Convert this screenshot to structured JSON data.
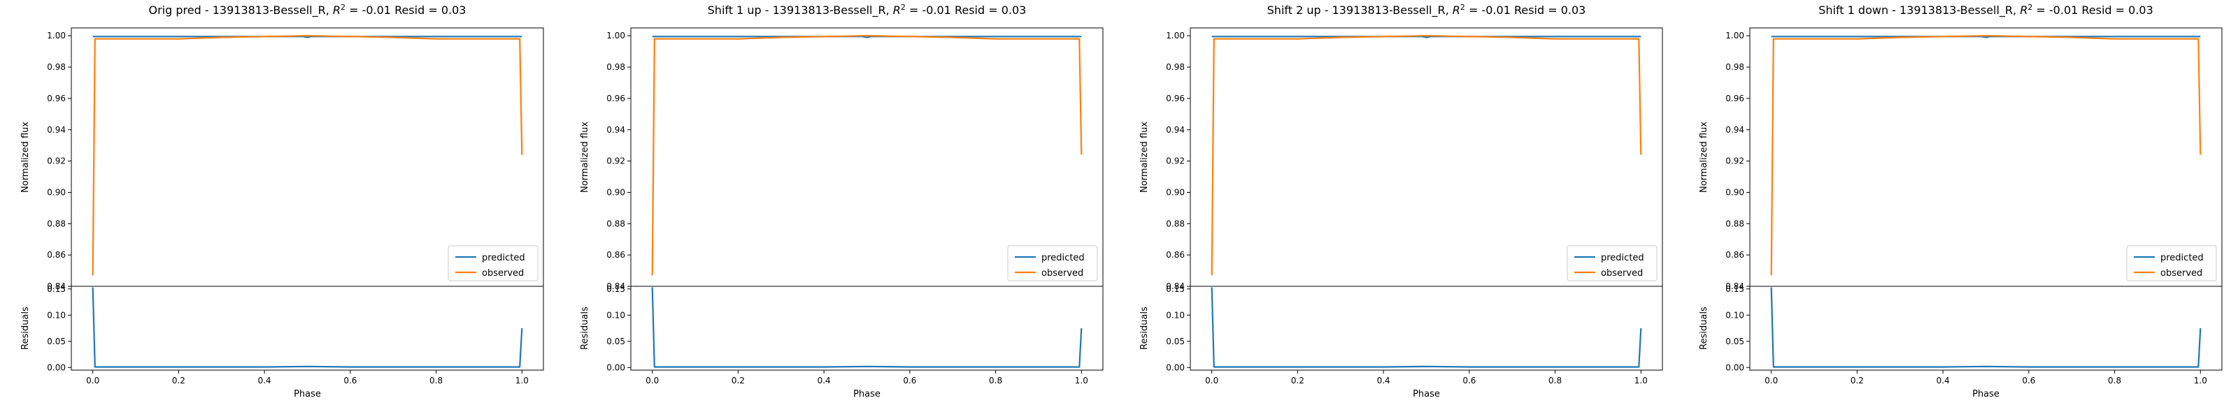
{
  "colors": {
    "predicted": "#1f77b4",
    "observed": "#ff7f0e",
    "axis": "#000000",
    "background": "#ffffff"
  },
  "chart_data": [
    {
      "type": "line",
      "title": "Orig pred - 13913813-Bessell_R, R² = -0.01 Resid = 0.03",
      "title_parts": {
        "prefix": "Orig pred - 13913813-Bessell_R, ",
        "r": "R",
        "sup": "2",
        "suffix": " = -0.01 Resid = 0.03"
      },
      "ylabel": "Normalized flux",
      "ylim": [
        0.84,
        1.005
      ],
      "yticks": [
        "0.84",
        "0.86",
        "0.88",
        "0.90",
        "0.92",
        "0.94",
        "0.96",
        "0.98",
        "1.00"
      ],
      "legend": {
        "position": "lower-right",
        "entries": [
          "predicted",
          "observed"
        ]
      },
      "series": [
        {
          "name": "predicted",
          "x": [
            0.0,
            0.005,
            0.1,
            0.2,
            0.3,
            0.4,
            0.49,
            0.5,
            0.51,
            0.6,
            0.7,
            0.8,
            0.9,
            0.995,
            1.0
          ],
          "values": [
            0.9995,
            0.9995,
            0.9995,
            0.9995,
            0.9995,
            0.9995,
            0.9995,
            0.999,
            0.9995,
            0.9995,
            0.9995,
            0.9995,
            0.9995,
            0.9995,
            0.9995
          ]
        },
        {
          "name": "observed",
          "x": [
            0.0,
            0.005,
            0.1,
            0.2,
            0.3,
            0.4,
            0.5,
            0.6,
            0.7,
            0.8,
            0.9,
            0.995,
            1.0
          ],
          "values": [
            0.847,
            0.998,
            0.998,
            0.998,
            0.999,
            0.9995,
            1.0,
            0.9995,
            0.999,
            0.998,
            0.998,
            0.998,
            0.924
          ]
        }
      ],
      "residuals": {
        "ylabel": "Residuals",
        "xlabel": "Phase",
        "ylim": [
          -0.005,
          0.155
        ],
        "yticks": [
          "0.00",
          "0.05",
          "0.10",
          "0.15"
        ],
        "xlim": [
          -0.05,
          1.05
        ],
        "xticks": [
          "0.0",
          "0.2",
          "0.4",
          "0.6",
          "0.8",
          "1.0"
        ],
        "x": [
          0.0,
          0.005,
          0.1,
          0.2,
          0.3,
          0.4,
          0.5,
          0.6,
          0.7,
          0.8,
          0.9,
          0.995,
          1.0
        ],
        "values": [
          0.153,
          0.001,
          0.001,
          0.001,
          0.001,
          0.001,
          0.002,
          0.001,
          0.001,
          0.001,
          0.001,
          0.001,
          0.075
        ]
      }
    },
    {
      "type": "line",
      "title": "Shift 1 up - 13913813-Bessell_R, R² = -0.01 Resid = 0.03",
      "title_parts": {
        "prefix": "Shift 1 up - 13913813-Bessell_R, ",
        "r": "R",
        "sup": "2",
        "suffix": " = -0.01 Resid = 0.03"
      },
      "ylabel": "Normalized flux",
      "ylim": [
        0.84,
        1.005
      ],
      "yticks": [
        "0.84",
        "0.86",
        "0.88",
        "0.90",
        "0.92",
        "0.94",
        "0.96",
        "0.98",
        "1.00"
      ],
      "legend": {
        "position": "lower-right",
        "entries": [
          "predicted",
          "observed"
        ]
      },
      "series": [
        {
          "name": "predicted",
          "x": [
            0.0,
            0.005,
            0.1,
            0.2,
            0.3,
            0.4,
            0.49,
            0.5,
            0.51,
            0.6,
            0.7,
            0.8,
            0.9,
            0.995,
            1.0
          ],
          "values": [
            0.9995,
            0.9995,
            0.9995,
            0.9995,
            0.9995,
            0.9995,
            0.9995,
            0.999,
            0.9995,
            0.9995,
            0.9995,
            0.9995,
            0.9995,
            0.9995,
            0.9995
          ]
        },
        {
          "name": "observed",
          "x": [
            0.0,
            0.005,
            0.1,
            0.2,
            0.3,
            0.4,
            0.5,
            0.6,
            0.7,
            0.8,
            0.9,
            0.995,
            1.0
          ],
          "values": [
            0.847,
            0.998,
            0.998,
            0.998,
            0.999,
            0.9995,
            1.0,
            0.9995,
            0.999,
            0.998,
            0.998,
            0.998,
            0.924
          ]
        }
      ],
      "residuals": {
        "ylabel": "Residuals",
        "xlabel": "Phase",
        "ylim": [
          -0.005,
          0.155
        ],
        "yticks": [
          "0.00",
          "0.05",
          "0.10",
          "0.15"
        ],
        "xlim": [
          -0.05,
          1.05
        ],
        "xticks": [
          "0.0",
          "0.2",
          "0.4",
          "0.6",
          "0.8",
          "1.0"
        ],
        "x": [
          0.0,
          0.005,
          0.1,
          0.2,
          0.3,
          0.4,
          0.5,
          0.6,
          0.7,
          0.8,
          0.9,
          0.995,
          1.0
        ],
        "values": [
          0.153,
          0.001,
          0.001,
          0.001,
          0.001,
          0.001,
          0.002,
          0.001,
          0.001,
          0.001,
          0.001,
          0.001,
          0.075
        ]
      }
    },
    {
      "type": "line",
      "title": "Shift 2 up - 13913813-Bessell_R, R² = -0.01 Resid = 0.03",
      "title_parts": {
        "prefix": "Shift 2 up - 13913813-Bessell_R, ",
        "r": "R",
        "sup": "2",
        "suffix": " = -0.01 Resid = 0.03"
      },
      "ylabel": "Normalized flux",
      "ylim": [
        0.84,
        1.005
      ],
      "yticks": [
        "0.84",
        "0.86",
        "0.88",
        "0.90",
        "0.92",
        "0.94",
        "0.96",
        "0.98",
        "1.00"
      ],
      "legend": {
        "position": "lower-right",
        "entries": [
          "predicted",
          "observed"
        ]
      },
      "series": [
        {
          "name": "predicted",
          "x": [
            0.0,
            0.005,
            0.1,
            0.2,
            0.3,
            0.4,
            0.49,
            0.5,
            0.51,
            0.6,
            0.7,
            0.8,
            0.9,
            0.995,
            1.0
          ],
          "values": [
            0.9995,
            0.9995,
            0.9995,
            0.9995,
            0.9995,
            0.9995,
            0.9995,
            0.999,
            0.9995,
            0.9995,
            0.9995,
            0.9995,
            0.9995,
            0.9995,
            0.9995
          ]
        },
        {
          "name": "observed",
          "x": [
            0.0,
            0.005,
            0.1,
            0.2,
            0.3,
            0.4,
            0.5,
            0.6,
            0.7,
            0.8,
            0.9,
            0.995,
            1.0
          ],
          "values": [
            0.847,
            0.998,
            0.998,
            0.998,
            0.999,
            0.9995,
            1.0,
            0.9995,
            0.999,
            0.998,
            0.998,
            0.998,
            0.924
          ]
        }
      ],
      "residuals": {
        "ylabel": "Residuals",
        "xlabel": "Phase",
        "ylim": [
          -0.005,
          0.155
        ],
        "yticks": [
          "0.00",
          "0.05",
          "0.10",
          "0.15"
        ],
        "xlim": [
          -0.05,
          1.05
        ],
        "xticks": [
          "0.0",
          "0.2",
          "0.4",
          "0.6",
          "0.8",
          "1.0"
        ],
        "x": [
          0.0,
          0.005,
          0.1,
          0.2,
          0.3,
          0.4,
          0.5,
          0.6,
          0.7,
          0.8,
          0.9,
          0.995,
          1.0
        ],
        "values": [
          0.153,
          0.001,
          0.001,
          0.001,
          0.001,
          0.001,
          0.002,
          0.001,
          0.001,
          0.001,
          0.001,
          0.001,
          0.075
        ]
      }
    },
    {
      "type": "line",
      "title": "Shift 1 down - 13913813-Bessell_R, R² = -0.01 Resid = 0.03",
      "title_parts": {
        "prefix": "Shift 1 down - 13913813-Bessell_R, ",
        "r": "R",
        "sup": "2",
        "suffix": " = -0.01 Resid = 0.03"
      },
      "ylabel": "Normalized flux",
      "ylim": [
        0.84,
        1.005
      ],
      "yticks": [
        "0.84",
        "0.86",
        "0.88",
        "0.90",
        "0.92",
        "0.94",
        "0.96",
        "0.98",
        "1.00"
      ],
      "legend": {
        "position": "lower-right",
        "entries": [
          "predicted",
          "observed"
        ]
      },
      "series": [
        {
          "name": "predicted",
          "x": [
            0.0,
            0.005,
            0.1,
            0.2,
            0.3,
            0.4,
            0.49,
            0.5,
            0.51,
            0.6,
            0.7,
            0.8,
            0.9,
            0.995,
            1.0
          ],
          "values": [
            0.9995,
            0.9995,
            0.9995,
            0.9995,
            0.9995,
            0.9995,
            0.9995,
            0.999,
            0.9995,
            0.9995,
            0.9995,
            0.9995,
            0.9995,
            0.9995,
            0.9995
          ]
        },
        {
          "name": "observed",
          "x": [
            0.0,
            0.005,
            0.1,
            0.2,
            0.3,
            0.4,
            0.5,
            0.6,
            0.7,
            0.8,
            0.9,
            0.995,
            1.0
          ],
          "values": [
            0.847,
            0.998,
            0.998,
            0.998,
            0.999,
            0.9995,
            1.0,
            0.9995,
            0.999,
            0.998,
            0.998,
            0.998,
            0.924
          ]
        }
      ],
      "residuals": {
        "ylabel": "Residuals",
        "xlabel": "Phase",
        "ylim": [
          -0.005,
          0.155
        ],
        "yticks": [
          "0.00",
          "0.05",
          "0.10",
          "0.15"
        ],
        "xlim": [
          -0.05,
          1.05
        ],
        "xticks": [
          "0.0",
          "0.2",
          "0.4",
          "0.6",
          "0.8",
          "1.0"
        ],
        "x": [
          0.0,
          0.005,
          0.1,
          0.2,
          0.3,
          0.4,
          0.5,
          0.6,
          0.7,
          0.8,
          0.9,
          0.995,
          1.0
        ],
        "values": [
          0.153,
          0.001,
          0.001,
          0.001,
          0.001,
          0.001,
          0.002,
          0.001,
          0.001,
          0.001,
          0.001,
          0.001,
          0.075
        ]
      }
    }
  ]
}
